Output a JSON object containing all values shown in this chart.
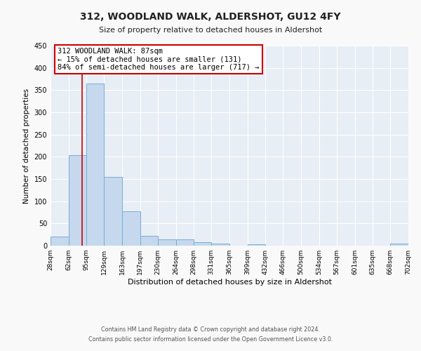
{
  "title": "312, WOODLAND WALK, ALDERSHOT, GU12 4FY",
  "subtitle": "Size of property relative to detached houses in Aldershot",
  "xlabel": "Distribution of detached houses by size in Aldershot",
  "ylabel": "Number of detached properties",
  "bin_edges": [
    28,
    62,
    95,
    129,
    163,
    197,
    230,
    264,
    298,
    331,
    365,
    399,
    432,
    466,
    500,
    534,
    567,
    601,
    635,
    668,
    702
  ],
  "bar_heights": [
    20,
    203,
    365,
    155,
    78,
    22,
    15,
    14,
    8,
    5,
    0,
    3,
    0,
    0,
    0,
    0,
    0,
    0,
    0,
    5
  ],
  "bar_color": "#c5d8ed",
  "bar_edge_color": "#7aadd4",
  "vline_color": "#cc0000",
  "vline_x": 87,
  "ylim": [
    0,
    450
  ],
  "annotation_title": "312 WOODLAND WALK: 87sqm",
  "annotation_line1": "← 15% of detached houses are smaller (131)",
  "annotation_line2": "84% of semi-detached houses are larger (717) →",
  "annotation_box_color": "#ffffff",
  "annotation_box_edge": "#cc0000",
  "footer_line1": "Contains HM Land Registry data © Crown copyright and database right 2024.",
  "footer_line2": "Contains public sector information licensed under the Open Government Licence v3.0.",
  "fig_bg_color": "#f9f9f9",
  "plot_bg_color": "#e8eef5",
  "grid_color": "#ffffff",
  "tick_labels": [
    "28sqm",
    "62sqm",
    "95sqm",
    "129sqm",
    "163sqm",
    "197sqm",
    "230sqm",
    "264sqm",
    "298sqm",
    "331sqm",
    "365sqm",
    "399sqm",
    "432sqm",
    "466sqm",
    "500sqm",
    "534sqm",
    "567sqm",
    "601sqm",
    "635sqm",
    "668sqm",
    "702sqm"
  ],
  "title_fontsize": 10,
  "subtitle_fontsize": 8,
  "xlabel_fontsize": 8,
  "ylabel_fontsize": 7.5,
  "tick_fontsize": 6.5,
  "annotation_fontsize": 7.5,
  "footer_fontsize": 5.8
}
